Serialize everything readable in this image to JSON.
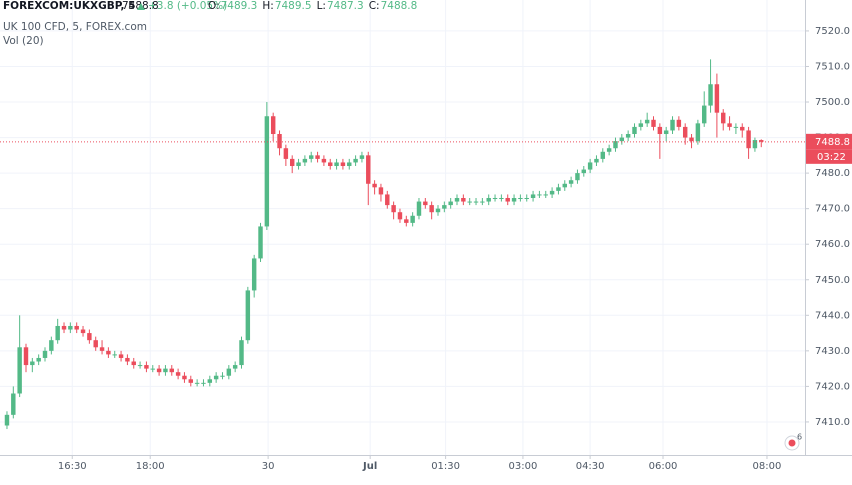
{
  "chart_data": {
    "type": "candlestick",
    "symbol": "FOREXCOM:UKXGBP, 5",
    "change": "+3.8 (+0.05%)",
    "ohlc_labels": [
      "O:",
      "H:",
      "L:",
      "C:"
    ],
    "subtitle": "UK 100 CFD, 5, FOREX.com",
    "indicator": "Vol (20)",
    "countdown": "03:22",
    "badge": "6",
    "up_color": "#53b987",
    "down_color": "#eb4d5c",
    "grid": true,
    "ylim": [
      7400.7,
      7528.7
    ],
    "yticks": [
      {
        "value": 7410,
        "label": "7410.0"
      },
      {
        "value": 7420,
        "label": "7420.0"
      },
      {
        "value": 7430,
        "label": "7430.0"
      },
      {
        "value": 7440,
        "label": "7440.0"
      },
      {
        "value": 7450,
        "label": "7450.0"
      },
      {
        "value": 7460,
        "label": "7460.0"
      },
      {
        "value": 7470,
        "label": "7470.0"
      },
      {
        "value": 7480,
        "label": "7480.0"
      },
      {
        "value": 7490,
        "label": "7490.0"
      },
      {
        "value": 7500,
        "label": "7500.0"
      },
      {
        "value": 7510,
        "label": "7510.0"
      },
      {
        "value": 7520,
        "label": "7520.0"
      }
    ],
    "xlim": [
      -1.1,
      125.9
    ],
    "xticks": [
      {
        "value": 10.3,
        "label": "16:30"
      },
      {
        "value": 22.6,
        "label": "18:00"
      },
      {
        "value": 41.2,
        "label": "30"
      },
      {
        "value": 57.3,
        "label": "Jul"
      },
      {
        "value": 69.2,
        "label": "01:30"
      },
      {
        "value": 81.4,
        "label": "03:00"
      },
      {
        "value": 92,
        "label": "04:30"
      },
      {
        "value": 103.5,
        "label": "06:00"
      },
      {
        "value": 119.9,
        "label": "08:00"
      }
    ],
    "candles": [
      [
        7409,
        7413,
        7408,
        7412
      ],
      [
        7412,
        7420,
        7411,
        7418
      ],
      [
        7418,
        7440,
        7417,
        7431
      ],
      [
        7431,
        7432,
        7424,
        7426
      ],
      [
        7426,
        7428,
        7424,
        7427
      ],
      [
        7427,
        7429,
        7426,
        7428
      ],
      [
        7428,
        7431,
        7427,
        7430
      ],
      [
        7430,
        7434,
        7429,
        7433
      ],
      [
        7433,
        7439,
        7432,
        7437
      ],
      [
        7437,
        7438,
        7435,
        7436
      ],
      [
        7436,
        7438,
        7435,
        7437
      ],
      [
        7437,
        7438,
        7435,
        7436
      ],
      [
        7436,
        7437,
        7434,
        7435
      ],
      [
        7435,
        7436,
        7432,
        7433
      ],
      [
        7433,
        7434,
        7430,
        7431
      ],
      [
        7431,
        7433,
        7429,
        7430
      ],
      [
        7430,
        7431,
        7428,
        7429
      ],
      [
        7429,
        7430,
        7428,
        7429
      ],
      [
        7429,
        7430,
        7427,
        7428
      ],
      [
        7428,
        7429,
        7426,
        7427
      ],
      [
        7427,
        7428,
        7425,
        7426
      ],
      [
        7426,
        7427,
        7425,
        7426
      ],
      [
        7426,
        7427,
        7424,
        7425
      ],
      [
        7425,
        7426,
        7424,
        7425
      ],
      [
        7425,
        7426,
        7423,
        7424
      ],
      [
        7424,
        7426,
        7423,
        7425
      ],
      [
        7425,
        7426,
        7423,
        7424
      ],
      [
        7424,
        7425,
        7422,
        7423
      ],
      [
        7423,
        7424,
        7421,
        7422
      ],
      [
        7422,
        7423,
        7420,
        7421
      ],
      [
        7421,
        7422,
        7420,
        7421
      ],
      [
        7421,
        7422,
        7420,
        7421
      ],
      [
        7421,
        7423,
        7420,
        7422
      ],
      [
        7422,
        7424,
        7421,
        7423
      ],
      [
        7423,
        7424,
        7422,
        7423
      ],
      [
        7423,
        7426,
        7422,
        7425
      ],
      [
        7425,
        7427,
        7424,
        7426
      ],
      [
        7426,
        7434,
        7425,
        7433
      ],
      [
        7433,
        7448,
        7432,
        7447
      ],
      [
        7447,
        7457,
        7445,
        7456
      ],
      [
        7456,
        7466,
        7455,
        7465
      ],
      [
        7465,
        7500,
        7464,
        7496
      ],
      [
        7496,
        7497,
        7489,
        7491
      ],
      [
        7491,
        7492,
        7485,
        7487
      ],
      [
        7487,
        7488,
        7482,
        7484
      ],
      [
        7484,
        7485,
        7480,
        7482
      ],
      [
        7482,
        7484,
        7481,
        7483
      ],
      [
        7483,
        7485,
        7482,
        7484
      ],
      [
        7484,
        7486,
        7483,
        7485
      ],
      [
        7485,
        7486,
        7483,
        7484
      ],
      [
        7484,
        7485,
        7482,
        7483
      ],
      [
        7483,
        7484,
        7481,
        7482
      ],
      [
        7482,
        7484,
        7481,
        7483
      ],
      [
        7483,
        7484,
        7481,
        7482
      ],
      [
        7482,
        7484,
        7481,
        7483
      ],
      [
        7483,
        7485,
        7482,
        7484
      ],
      [
        7484,
        7486,
        7483,
        7485
      ],
      [
        7485,
        7486,
        7471,
        7477
      ],
      [
        7477,
        7478,
        7474,
        7476
      ],
      [
        7476,
        7477,
        7472,
        7474
      ],
      [
        7474,
        7475,
        7470,
        7471
      ],
      [
        7471,
        7472,
        7467,
        7469
      ],
      [
        7469,
        7470,
        7466,
        7467
      ],
      [
        7467,
        7468,
        7465,
        7466
      ],
      [
        7466,
        7469,
        7465,
        7468
      ],
      [
        7468,
        7473,
        7467,
        7472
      ],
      [
        7472,
        7473,
        7470,
        7471
      ],
      [
        7471,
        7472,
        7467,
        7469
      ],
      [
        7469,
        7471,
        7468,
        7470
      ],
      [
        7470,
        7472,
        7469,
        7471
      ],
      [
        7471,
        7473,
        7470,
        7472
      ],
      [
        7472,
        7474,
        7471,
        7473
      ],
      [
        7473,
        7474,
        7471,
        7472
      ],
      [
        7472,
        7473,
        7471,
        7472
      ],
      [
        7472,
        7473,
        7471,
        7472
      ],
      [
        7472,
        7473,
        7471,
        7472
      ],
      [
        7472,
        7474,
        7471,
        7473
      ],
      [
        7473,
        7474,
        7472,
        7473
      ],
      [
        7473,
        7474,
        7472,
        7473
      ],
      [
        7473,
        7474,
        7471,
        7472
      ],
      [
        7472,
        7474,
        7471,
        7473
      ],
      [
        7473,
        7474,
        7472,
        7473
      ],
      [
        7473,
        7474,
        7472,
        7473
      ],
      [
        7473,
        7475,
        7472,
        7474
      ],
      [
        7474,
        7475,
        7473,
        7474
      ],
      [
        7474,
        7475,
        7473,
        7474
      ],
      [
        7474,
        7476,
        7473,
        7475
      ],
      [
        7475,
        7477,
        7474,
        7476
      ],
      [
        7476,
        7478,
        7475,
        7477
      ],
      [
        7477,
        7479,
        7476,
        7478
      ],
      [
        7478,
        7481,
        7477,
        7480
      ],
      [
        7480,
        7482,
        7479,
        7481
      ],
      [
        7481,
        7484,
        7480,
        7483
      ],
      [
        7483,
        7485,
        7482,
        7484
      ],
      [
        7484,
        7487,
        7483,
        7486
      ],
      [
        7486,
        7488,
        7485,
        7487
      ],
      [
        7487,
        7490,
        7486,
        7489
      ],
      [
        7489,
        7491,
        7488,
        7490
      ],
      [
        7490,
        7492,
        7489,
        7491
      ],
      [
        7491,
        7494,
        7490,
        7493
      ],
      [
        7493,
        7495,
        7492,
        7494
      ],
      [
        7494,
        7497,
        7493,
        7495
      ],
      [
        7495,
        7496,
        7492,
        7493
      ],
      [
        7493,
        7494,
        7484,
        7491
      ],
      [
        7491,
        7493,
        7489,
        7492
      ],
      [
        7492,
        7496,
        7491,
        7495
      ],
      [
        7495,
        7496,
        7492,
        7493
      ],
      [
        7493,
        7494,
        7488,
        7490
      ],
      [
        7490,
        7491,
        7487,
        7489
      ],
      [
        7489,
        7495,
        7488,
        7494
      ],
      [
        7494,
        7503,
        7493,
        7499
      ],
      [
        7499,
        7512,
        7497,
        7505
      ],
      [
        7505,
        7508,
        7490,
        7497
      ],
      [
        7497,
        7498,
        7492,
        7494
      ],
      [
        7494,
        7496,
        7492,
        7493
      ],
      [
        7493,
        7494,
        7491,
        7493
      ],
      [
        7493,
        7494,
        7490,
        7492
      ],
      [
        7492,
        7493,
        7484,
        7487
      ],
      [
        7487,
        7490,
        7486,
        7489.3
      ],
      [
        7489.3,
        7489.5,
        7487.3,
        7488.8
      ]
    ]
  }
}
